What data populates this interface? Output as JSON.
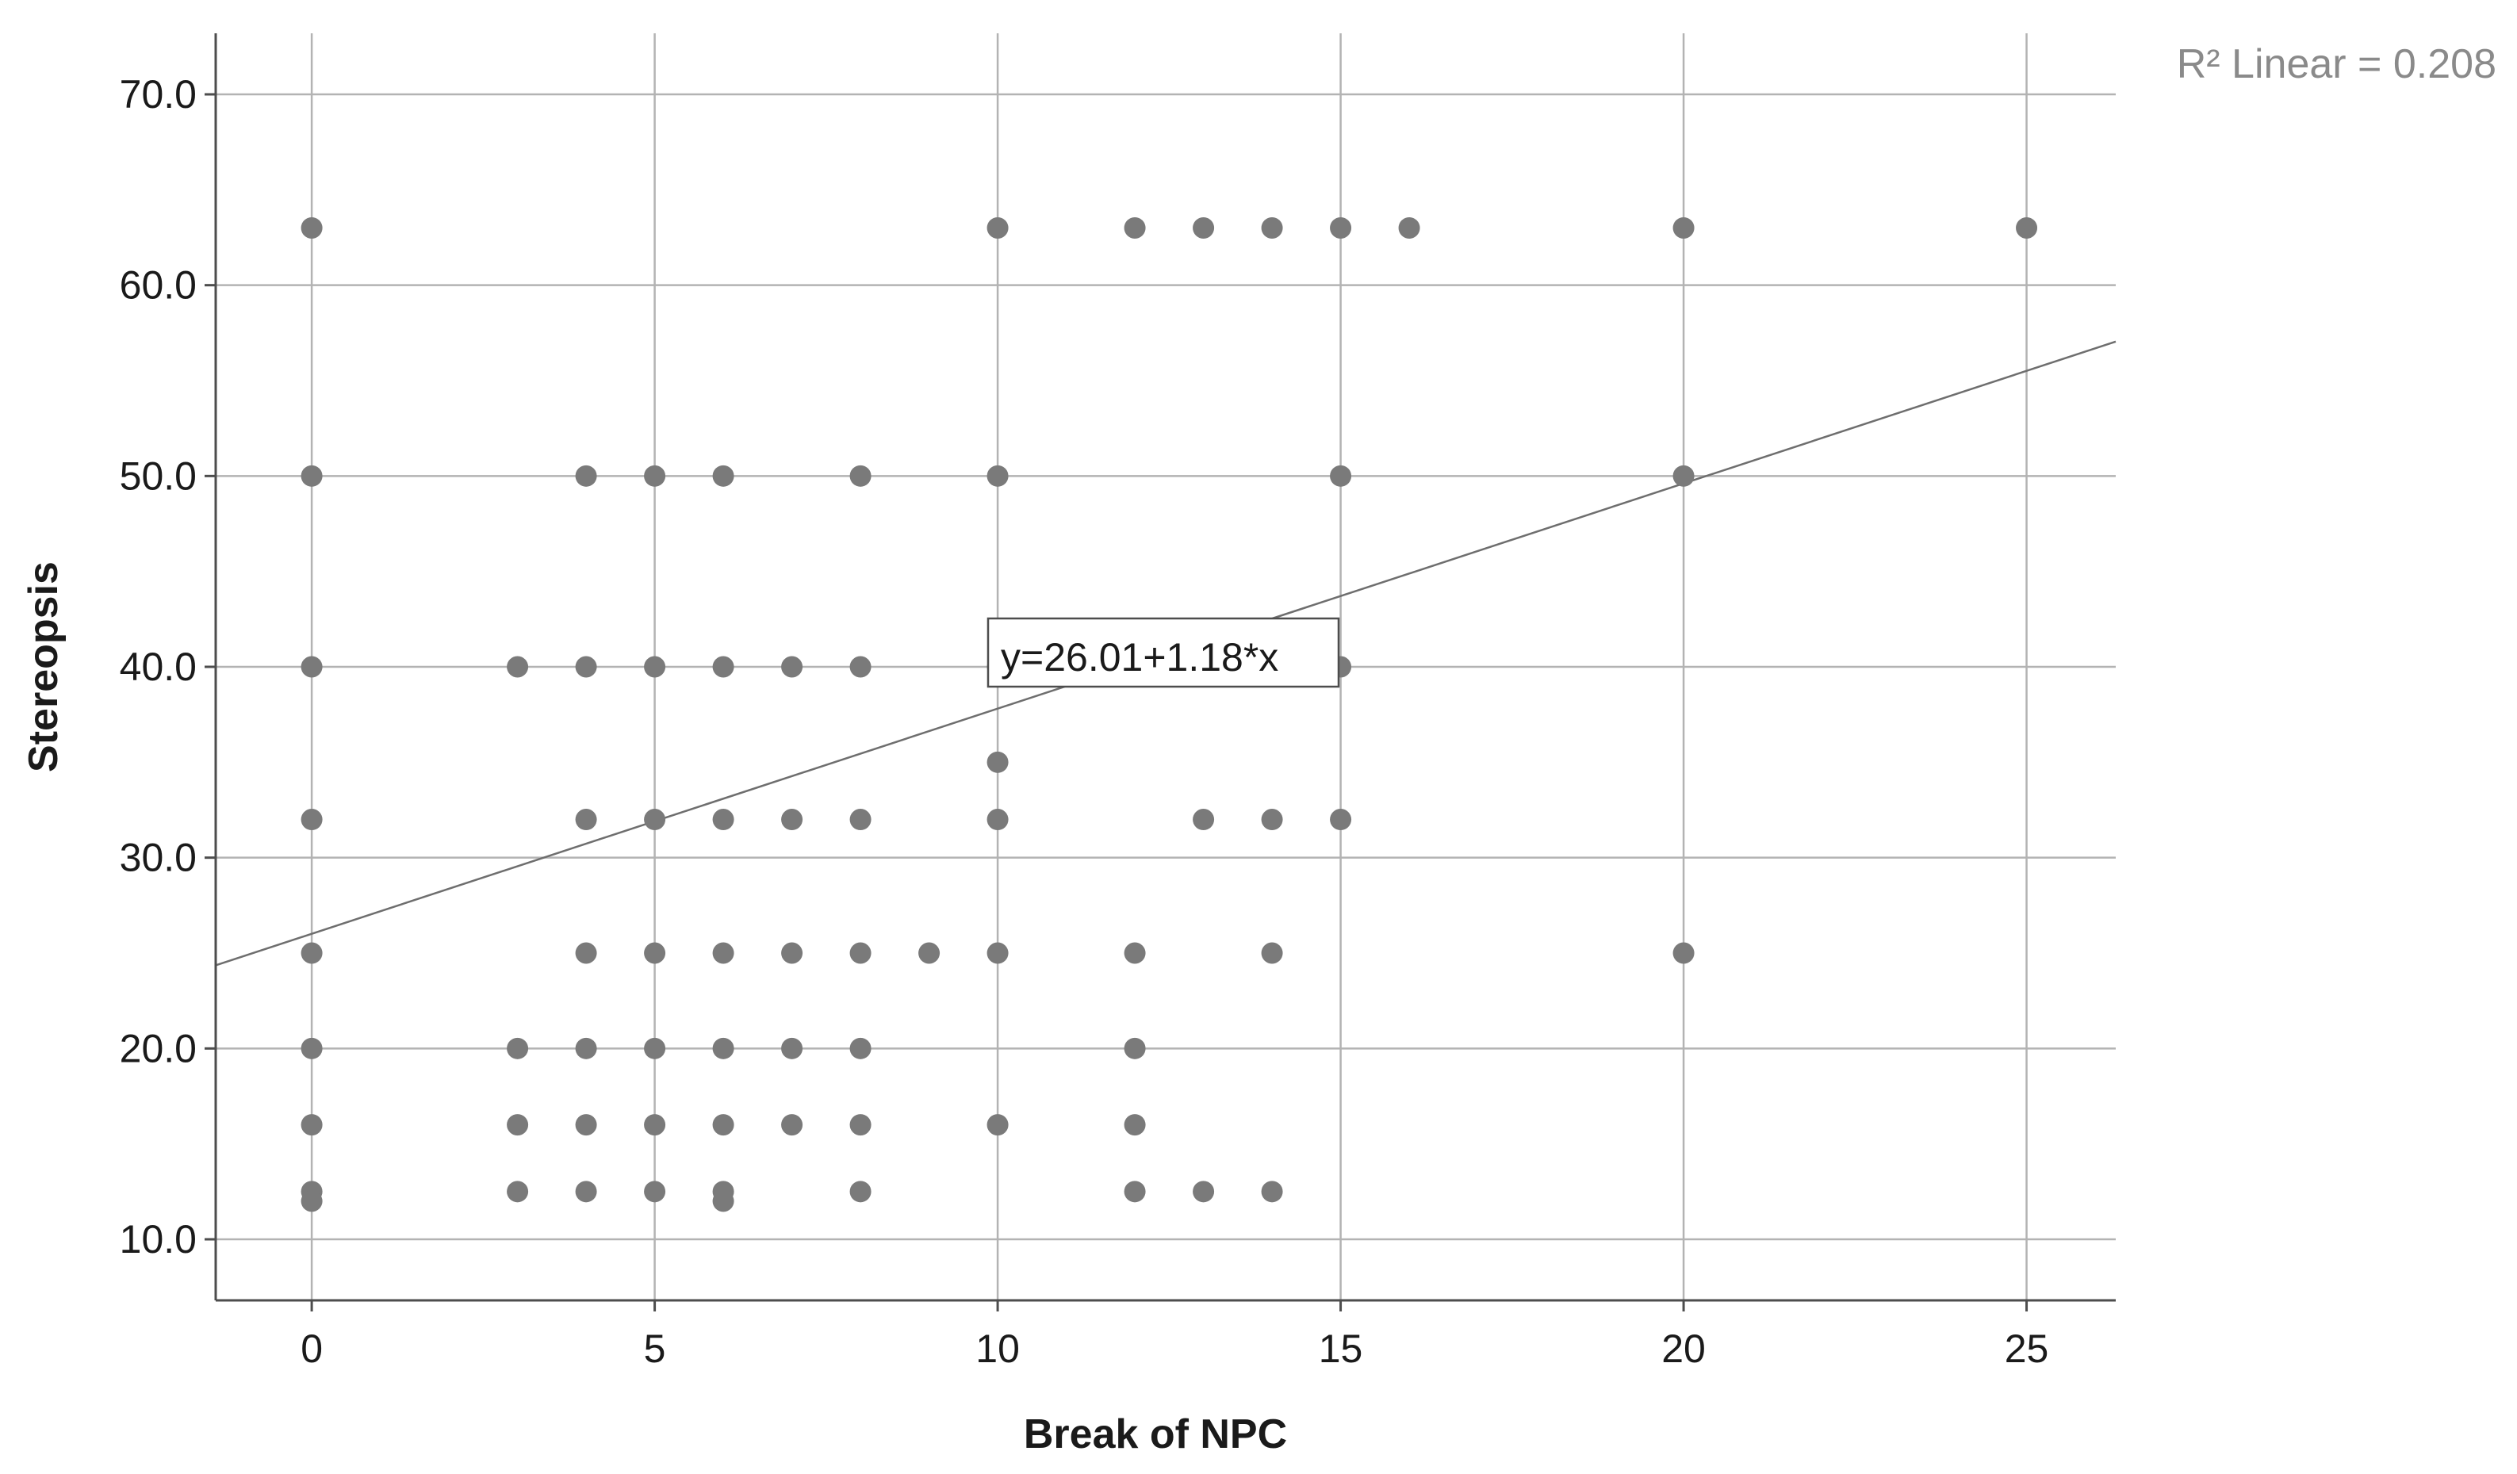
{
  "chart_data": {
    "type": "scatter",
    "xlabel": "Break of NPC",
    "ylabel": "Stereopsis",
    "xlim": [
      -1.4,
      26.3
    ],
    "ylim": [
      6.8,
      73.2
    ],
    "xticks": [
      0,
      5,
      10,
      15,
      20,
      25
    ],
    "yticks": [
      10,
      20,
      30,
      40,
      50,
      60,
      70
    ],
    "xtick_labels": [
      "0",
      "5",
      "10",
      "15",
      "20",
      "25"
    ],
    "ytick_labels": [
      "10.0",
      "20.0",
      "30.0",
      "40.0",
      "50.0",
      "60.0",
      "70.0"
    ],
    "grid": true,
    "fit_line": {
      "intercept": 26.01,
      "slope": 1.18,
      "equation_label": "y=26.01+1.18*x",
      "r2_label": "R² Linear = 0.208"
    },
    "points": [
      {
        "x": 0,
        "y": 63
      },
      {
        "x": 0,
        "y": 50
      },
      {
        "x": 0,
        "y": 40
      },
      {
        "x": 0,
        "y": 32
      },
      {
        "x": 0,
        "y": 25
      },
      {
        "x": 0,
        "y": 20
      },
      {
        "x": 0,
        "y": 16
      },
      {
        "x": 0,
        "y": 12.5
      },
      {
        "x": 0,
        "y": 12
      },
      {
        "x": 3,
        "y": 40
      },
      {
        "x": 3,
        "y": 20
      },
      {
        "x": 3,
        "y": 16
      },
      {
        "x": 3,
        "y": 12.5
      },
      {
        "x": 4,
        "y": 50
      },
      {
        "x": 4,
        "y": 40
      },
      {
        "x": 4,
        "y": 32
      },
      {
        "x": 4,
        "y": 25
      },
      {
        "x": 4,
        "y": 20
      },
      {
        "x": 4,
        "y": 16
      },
      {
        "x": 4,
        "y": 12.5
      },
      {
        "x": 5,
        "y": 50
      },
      {
        "x": 5,
        "y": 40
      },
      {
        "x": 5,
        "y": 32
      },
      {
        "x": 5,
        "y": 25
      },
      {
        "x": 5,
        "y": 20
      },
      {
        "x": 5,
        "y": 16
      },
      {
        "x": 5,
        "y": 12.5
      },
      {
        "x": 6,
        "y": 50
      },
      {
        "x": 6,
        "y": 40
      },
      {
        "x": 6,
        "y": 32
      },
      {
        "x": 6,
        "y": 25
      },
      {
        "x": 6,
        "y": 20
      },
      {
        "x": 6,
        "y": 16
      },
      {
        "x": 6,
        "y": 12.5
      },
      {
        "x": 6,
        "y": 12
      },
      {
        "x": 7,
        "y": 40
      },
      {
        "x": 7,
        "y": 32
      },
      {
        "x": 7,
        "y": 25
      },
      {
        "x": 7,
        "y": 20
      },
      {
        "x": 7,
        "y": 16
      },
      {
        "x": 8,
        "y": 50
      },
      {
        "x": 8,
        "y": 40
      },
      {
        "x": 8,
        "y": 32
      },
      {
        "x": 8,
        "y": 25
      },
      {
        "x": 8,
        "y": 20
      },
      {
        "x": 8,
        "y": 16
      },
      {
        "x": 8,
        "y": 12.5
      },
      {
        "x": 9,
        "y": 25
      },
      {
        "x": 10,
        "y": 63
      },
      {
        "x": 10,
        "y": 50
      },
      {
        "x": 10,
        "y": 40
      },
      {
        "x": 10,
        "y": 35
      },
      {
        "x": 10,
        "y": 32
      },
      {
        "x": 10,
        "y": 25
      },
      {
        "x": 10,
        "y": 16
      },
      {
        "x": 12,
        "y": 63
      },
      {
        "x": 12,
        "y": 25
      },
      {
        "x": 12,
        "y": 20
      },
      {
        "x": 12,
        "y": 16
      },
      {
        "x": 12,
        "y": 12.5
      },
      {
        "x": 13,
        "y": 63
      },
      {
        "x": 13,
        "y": 32
      },
      {
        "x": 13,
        "y": 12.5
      },
      {
        "x": 14,
        "y": 63
      },
      {
        "x": 14,
        "y": 32
      },
      {
        "x": 14,
        "y": 25
      },
      {
        "x": 14,
        "y": 12.5
      },
      {
        "x": 15,
        "y": 63
      },
      {
        "x": 15,
        "y": 50
      },
      {
        "x": 15,
        "y": 40
      },
      {
        "x": 15,
        "y": 32
      },
      {
        "x": 16,
        "y": 63
      },
      {
        "x": 20,
        "y": 63
      },
      {
        "x": 20,
        "y": 50
      },
      {
        "x": 20,
        "y": 25
      },
      {
        "x": 25,
        "y": 63
      }
    ]
  }
}
